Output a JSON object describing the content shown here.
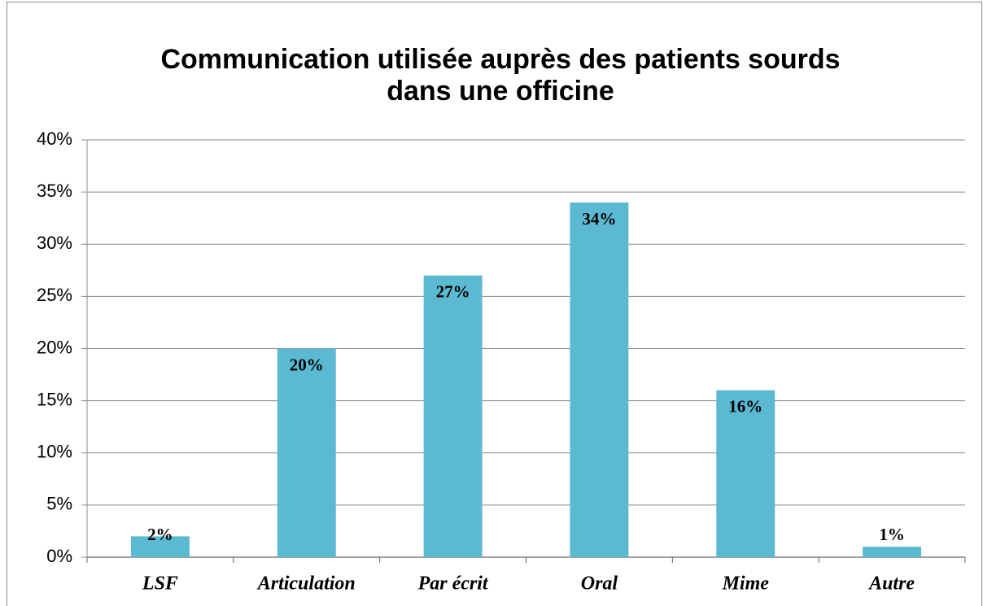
{
  "chart_data": {
    "type": "bar",
    "title": [
      "Communication utilisée auprès des patients sourds",
      "dans une officine"
    ],
    "categories": [
      "LSF",
      "Articulation",
      "Par écrit",
      "Oral",
      "Mime",
      "Autre"
    ],
    "values": [
      2,
      20,
      27,
      34,
      16,
      1
    ],
    "value_labels": [
      "2%",
      "20%",
      "27%",
      "34%",
      "16%",
      "1%"
    ],
    "color": "#5bb9d1",
    "ylim": [
      0,
      40
    ],
    "yticks": [
      {
        "value": 0,
        "label": "0%"
      },
      {
        "value": 5,
        "label": "5%"
      },
      {
        "value": 10,
        "label": "10%"
      },
      {
        "value": 15,
        "label": "15%"
      },
      {
        "value": 20,
        "label": "20%"
      },
      {
        "value": 25,
        "label": "25%"
      },
      {
        "value": 30,
        "label": "30%"
      },
      {
        "value": 35,
        "label": "35%"
      },
      {
        "value": 40,
        "label": "40%"
      }
    ],
    "grid": true
  }
}
